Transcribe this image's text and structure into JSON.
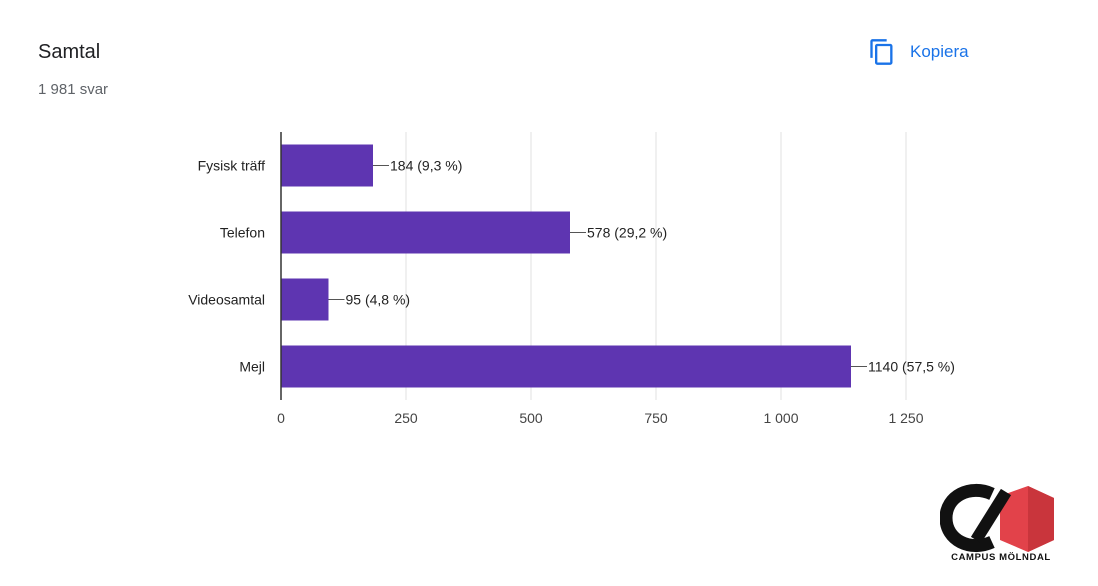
{
  "header": {
    "title": "Samtal",
    "response_count": "1 981 svar",
    "copy_label": "Kopiera"
  },
  "colors": {
    "bar": "#5e35b1",
    "accent": "#1a73e8",
    "grid": "#e0e0e0",
    "logo_red": "#e2424a"
  },
  "icons": {
    "copy": "copy-icon",
    "logo": "campus-molndal-logo"
  },
  "chart_data": {
    "type": "bar",
    "orientation": "horizontal",
    "categories": [
      "Fysisk träff",
      "Telefon",
      "Videosamtal",
      "Mejl"
    ],
    "values": [
      184,
      578,
      95,
      1140
    ],
    "data_labels": [
      "184 (9,3 %)",
      "578 (29,2 %)",
      "95 (4,8 %)",
      "1140 (57,5 %)"
    ],
    "xlim": [
      0,
      1250
    ],
    "x_ticks": [
      0,
      250,
      500,
      750,
      1000,
      1250
    ],
    "x_tick_labels": [
      "0",
      "250",
      "500",
      "750",
      "1 000",
      "1 250"
    ],
    "grid": true,
    "legend": "none"
  },
  "logo": {
    "text": "CAMPUS MÖLNDAL"
  }
}
